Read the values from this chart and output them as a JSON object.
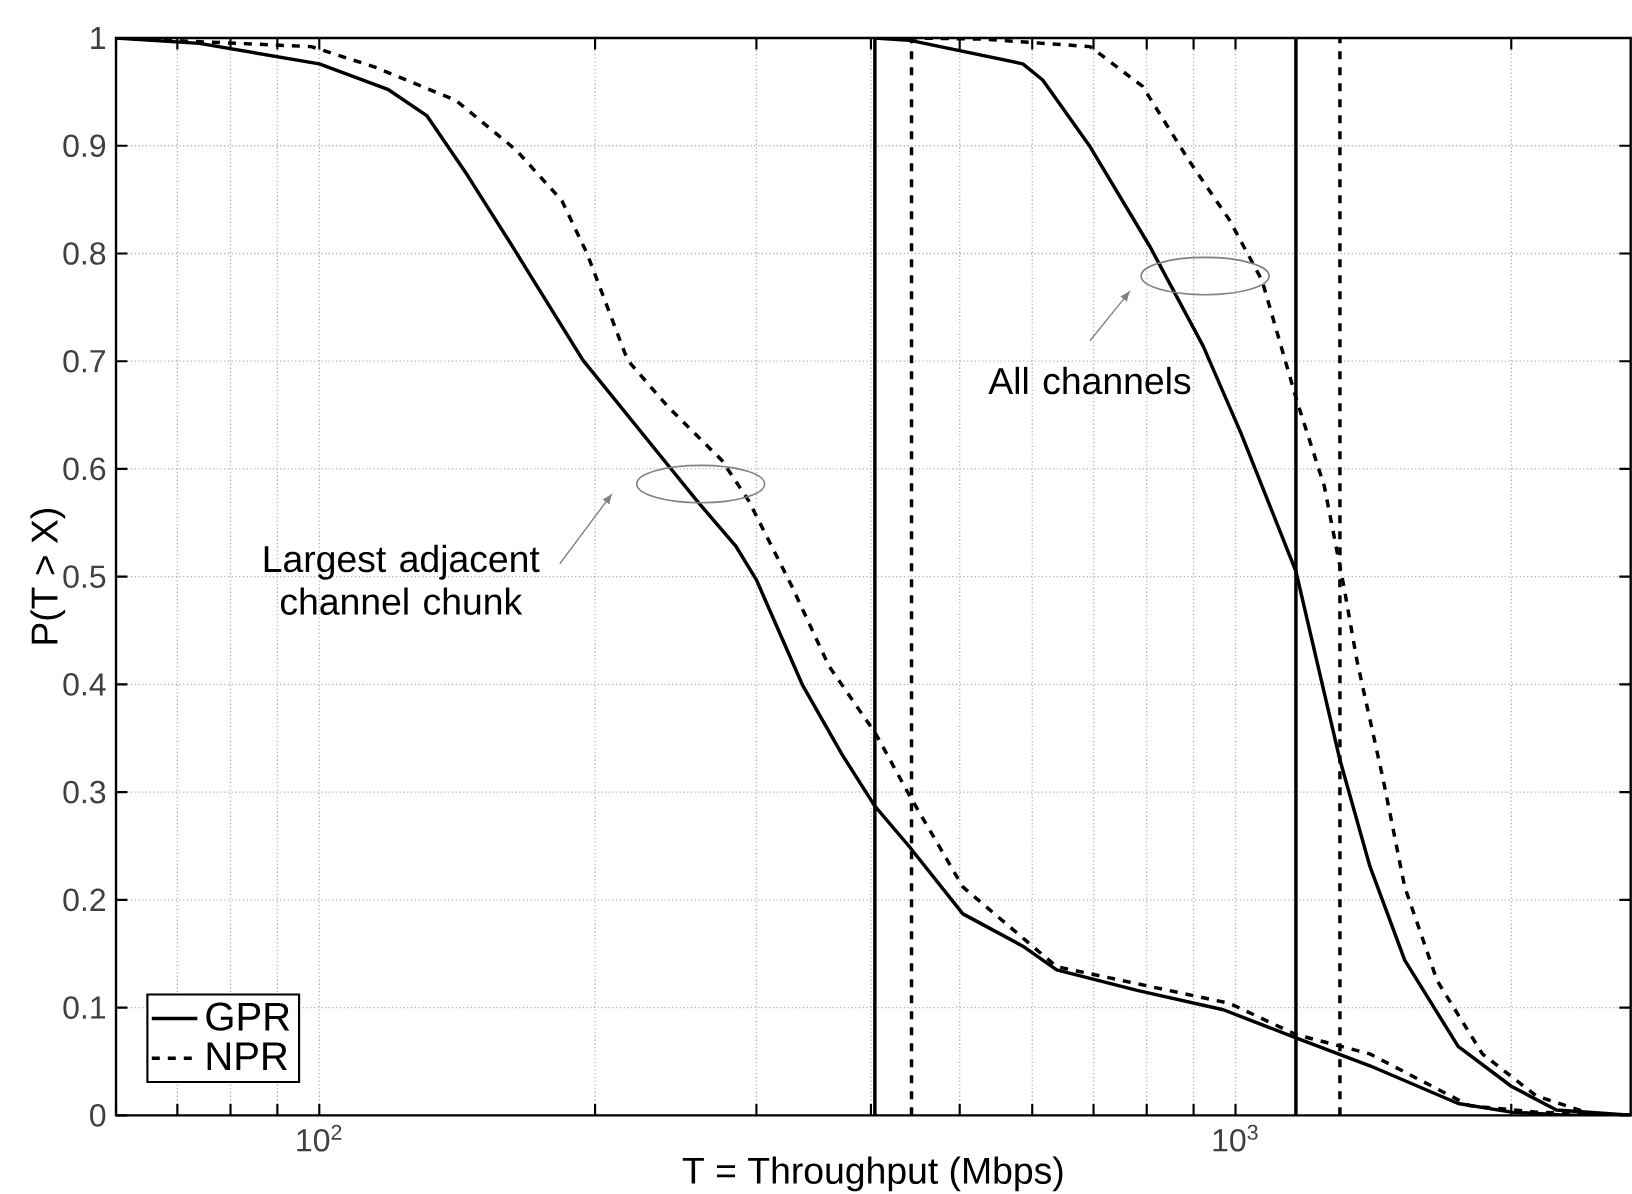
{
  "chart_data": {
    "type": "line",
    "xlabel": "T = Throughput (Mbps)",
    "ylabel": "P(T > X)",
    "log": "x",
    "xlim": [
      60,
      2700
    ],
    "ylim": [
      0,
      1
    ],
    "xticks": [
      {
        "value": 60,
        "label": null
      },
      {
        "value": 70,
        "label": null
      },
      {
        "value": 80,
        "label": null
      },
      {
        "value": 90,
        "label": null
      },
      {
        "value": 100,
        "label": "10$^{2}$"
      },
      {
        "value": 200,
        "label": null
      },
      {
        "value": 300,
        "label": null
      },
      {
        "value": 400,
        "label": null
      },
      {
        "value": 500,
        "label": null
      },
      {
        "value": 600,
        "label": null
      },
      {
        "value": 700,
        "label": null
      },
      {
        "value": 800,
        "label": null
      },
      {
        "value": 900,
        "label": null
      },
      {
        "value": 1000,
        "label": "10$^{3}$"
      },
      {
        "value": 2000,
        "label": null
      }
    ],
    "yticks": [
      0,
      0.1,
      0.2,
      0.3,
      0.4,
      0.5,
      0.6,
      0.7,
      0.8,
      0.9,
      1
    ],
    "grid": true,
    "legend": "bottom left",
    "marker": "none",
    "series": [
      {
        "name": "GPR",
        "color": "#000000",
        "line_style": "solid",
        "x": [
          60,
          74,
          100,
          119,
          131,
          145,
          161,
          194,
          241,
          258,
          285,
          300,
          337,
          372,
          404,
          440,
          504,
          586,
          638,
          781,
          970,
          1164,
          1402,
          1750,
          2000,
          2300,
          2700
        ],
        "values": [
          1.0,
          0.995,
          0.976,
          0.952,
          0.928,
          0.873,
          0.812,
          0.701,
          0.602,
          0.571,
          0.528,
          0.497,
          0.399,
          0.335,
          0.287,
          0.25,
          0.187,
          0.157,
          0.135,
          0.116,
          0.098,
          0.072,
          0.046,
          0.011,
          0.003,
          0,
          0
        ]
      },
      {
        "name": "NPR",
        "color": "#000000",
        "line_style": "dashed",
        "x": [
          60,
          98,
          115,
          141,
          164,
          184,
          196,
          217,
          240,
          275,
          294,
          328,
          360,
          405,
          440,
          504,
          638,
          985,
          1164,
          1402,
          1800,
          2130,
          2700
        ],
        "values": [
          1.0,
          0.992,
          0.973,
          0.942,
          0.896,
          0.849,
          0.8,
          0.701,
          0.658,
          0.608,
          0.571,
          0.491,
          0.417,
          0.354,
          0.298,
          0.212,
          0.138,
          0.104,
          0.075,
          0.057,
          0.009,
          0.003,
          0
        ]
      },
      {
        "color": "#000000",
        "line_style": "solid",
        "x": [
          404,
          440,
          586,
          616,
          694,
          807,
          922,
          1014,
          1164,
          1300,
          1402,
          1530,
          1750,
          2000,
          2240,
          2700
        ],
        "values": [
          1.0,
          0.998,
          0.976,
          0.961,
          0.899,
          0.806,
          0.714,
          0.633,
          0.505,
          0.33,
          0.231,
          0.144,
          0.064,
          0.027,
          0.005,
          0
        ]
      },
      {
        "color": "#000000",
        "line_style": "dashed",
        "x": [
          440,
          530,
          694,
          792,
          890,
          985,
          1069,
          1166,
          1250,
          1313,
          1357,
          1450,
          1530,
          1660,
          1860,
          2130,
          2450,
          2700
        ],
        "values": [
          1.0,
          0.999,
          0.992,
          0.955,
          0.886,
          0.831,
          0.775,
          0.664,
          0.584,
          0.491,
          0.422,
          0.311,
          0.212,
          0.125,
          0.057,
          0.018,
          0.001,
          0
        ]
      }
    ],
    "ref_lines": [
      {
        "axis": "x",
        "value": 404,
        "color": "#000000",
        "line_style": "solid"
      },
      {
        "axis": "x",
        "value": 443,
        "color": "#000000",
        "line_style": "dashed"
      },
      {
        "axis": "x",
        "value": 1164,
        "color": "#000000",
        "line_style": "solid"
      },
      {
        "axis": "x",
        "value": 1300,
        "color": "#000000",
        "line_style": "dashed"
      }
    ],
    "annotations": [
      "Largest adjacent channel chunk",
      "All channels"
    ]
  }
}
